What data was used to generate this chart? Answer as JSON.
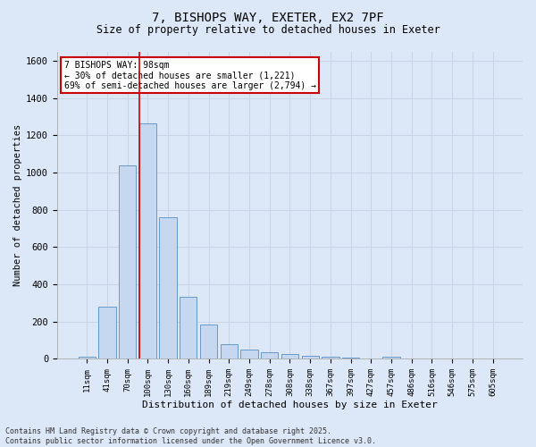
{
  "title_line1": "7, BISHOPS WAY, EXETER, EX2 7PF",
  "title_line2": "Size of property relative to detached houses in Exeter",
  "xlabel": "Distribution of detached houses by size in Exeter",
  "ylabel": "Number of detached properties",
  "bar_labels": [
    "11sqm",
    "41sqm",
    "70sqm",
    "100sqm",
    "130sqm",
    "160sqm",
    "189sqm",
    "219sqm",
    "249sqm",
    "278sqm",
    "308sqm",
    "338sqm",
    "367sqm",
    "397sqm",
    "427sqm",
    "457sqm",
    "486sqm",
    "516sqm",
    "546sqm",
    "575sqm",
    "605sqm"
  ],
  "bar_values": [
    10,
    280,
    1040,
    1265,
    760,
    335,
    185,
    78,
    48,
    35,
    25,
    18,
    10,
    5,
    0,
    12,
    0,
    0,
    0,
    0,
    0
  ],
  "bar_color": "#c5d8f0",
  "bar_edge_color": "#6699cc",
  "vline_x_index": 3,
  "vline_color": "#cc0000",
  "ylim": [
    0,
    1650
  ],
  "yticks": [
    0,
    200,
    400,
    600,
    800,
    1000,
    1200,
    1400,
    1600
  ],
  "annotation_title": "7 BISHOPS WAY: 98sqm",
  "annotation_line2": "← 30% of detached houses are smaller (1,221)",
  "annotation_line3": "69% of semi-detached houses are larger (2,794) →",
  "annotation_box_color": "#cc0000",
  "grid_color": "#c8d4e8",
  "fig_bg_color": "#dce8f8",
  "plot_bg_color": "#dce8f8",
  "footer_line1": "Contains HM Land Registry data © Crown copyright and database right 2025.",
  "footer_line2": "Contains public sector information licensed under the Open Government Licence v3.0."
}
